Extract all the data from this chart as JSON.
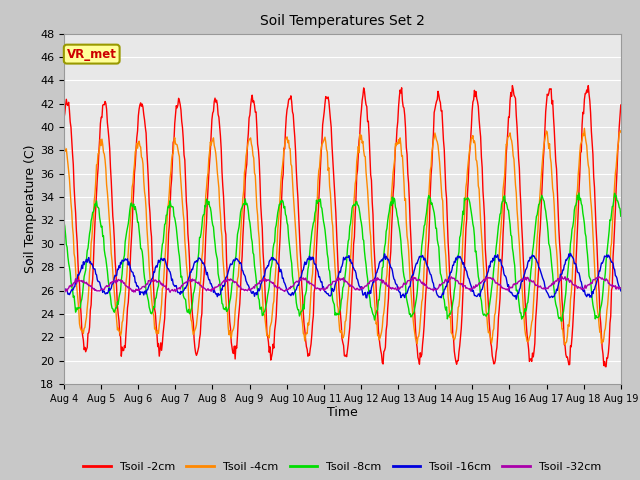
{
  "title": "Soil Temperatures Set 2",
  "xlabel": "Time",
  "ylabel": "Soil Temperature (C)",
  "ylim": [
    18,
    48
  ],
  "yticks": [
    18,
    20,
    22,
    24,
    26,
    28,
    30,
    32,
    34,
    36,
    38,
    40,
    42,
    44,
    46,
    48
  ],
  "n_days": 15,
  "xtick_labels": [
    "Aug 4",
    "Aug 5",
    "Aug 6",
    "Aug 7",
    "Aug 8",
    "Aug 9",
    "Aug 10",
    "Aug 11",
    "Aug 12",
    "Aug 13",
    "Aug 14",
    "Aug 15",
    "Aug 16",
    "Aug 17",
    "Aug 18",
    "Aug 19"
  ],
  "vr_met_label": "VR_met",
  "vr_met_color": "#cc0000",
  "vr_met_bg": "#ffff99",
  "vr_met_border": "#999900",
  "fig_bg": "#c8c8c8",
  "plot_bg": "#e8e8e8",
  "grid_color": "#ffffff",
  "legend_colors": [
    "#ff0000",
    "#ff8800",
    "#00dd00",
    "#0000dd",
    "#aa00aa"
  ],
  "legend_labels": [
    "Tsoil -2cm",
    "Tsoil -4cm",
    "Tsoil -8cm",
    "Tsoil -16cm",
    "Tsoil -32cm"
  ]
}
